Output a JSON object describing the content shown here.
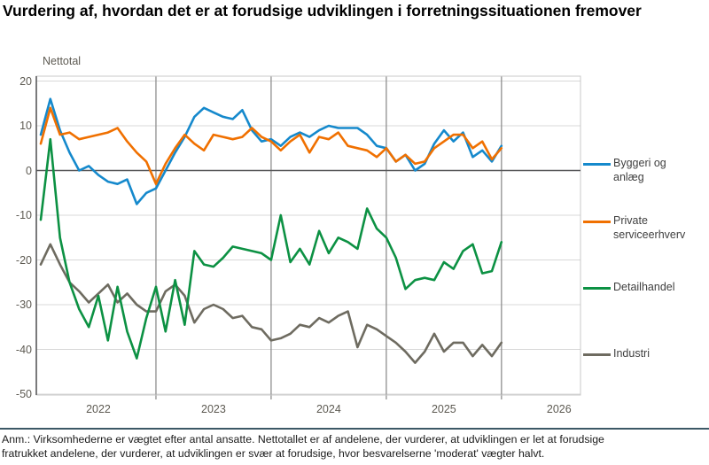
{
  "title": "Vurdering af, hvordan det er at forudsige udviklingen i forretningssituationen fremover",
  "y_axis_title": "Nettotal",
  "footnote_line1": "Anm.: Virksomhederne er vægtet efter antal ansatte. Nettotallet er af andelene, der vurderer, at udviklingen er let at forudsige",
  "footnote_line2": "fratrukket andelene, der vurderer, at udviklingen er svær at forudsige, hvor besvarelserne 'moderat' vægter halvt.",
  "chart_data": {
    "type": "line",
    "title": "Vurdering af, hvordan det er at forudsige udviklingen i forretningssituationen fremover",
    "ylabel": "Nettotal",
    "ylim": [
      -50,
      20
    ],
    "y_ticks": [
      20,
      10,
      0,
      -10,
      -20,
      -30,
      -40,
      -50
    ],
    "x_year_labels": [
      "2022",
      "2023",
      "2024",
      "2025",
      "2026"
    ],
    "grid": true,
    "legend_position": "right",
    "x": [
      "2021-07",
      "2021-08",
      "2021-09",
      "2021-10",
      "2021-11",
      "2021-12",
      "2022-01",
      "2022-02",
      "2022-03",
      "2022-04",
      "2022-05",
      "2022-06",
      "2022-07",
      "2022-08",
      "2022-09",
      "2022-10",
      "2022-11",
      "2022-12",
      "2023-01",
      "2023-02",
      "2023-03",
      "2023-04",
      "2023-05",
      "2023-06",
      "2023-07",
      "2023-08",
      "2023-09",
      "2023-10",
      "2023-11",
      "2023-12",
      "2024-01",
      "2024-02",
      "2024-03",
      "2024-04",
      "2024-05",
      "2024-06",
      "2024-07",
      "2024-08",
      "2024-09",
      "2024-10",
      "2024-11",
      "2024-12",
      "2025-01",
      "2025-02",
      "2025-03",
      "2025-04",
      "2025-05",
      "2025-06",
      "2025-07"
    ],
    "series": [
      {
        "name": "Byggeri og anlæg",
        "color": "#1589cc",
        "values": [
          8,
          16,
          9,
          4,
          0,
          1,
          -1,
          -2.5,
          -3,
          -2,
          -7.5,
          -5,
          -4,
          0,
          4,
          7.5,
          12,
          14,
          13,
          12,
          11.5,
          13.5,
          9,
          6.5,
          7,
          5.5,
          7.5,
          8.5,
          7.5,
          9,
          10,
          9.5,
          9.5,
          9.5,
          8,
          5.5,
          5,
          2,
          3.5,
          0,
          1.5,
          6,
          9,
          6.5,
          8.5,
          3,
          4.5,
          2,
          5.5
        ]
      },
      {
        "name": "Private serviceerhverv",
        "color": "#f07000",
        "values": [
          6,
          14,
          8,
          8.5,
          7,
          7.5,
          8,
          8.5,
          9.5,
          6.5,
          4,
          2,
          -3,
          1.5,
          5,
          8,
          6,
          4.5,
          8,
          7.5,
          7,
          7.5,
          9.5,
          7.5,
          6.5,
          4.5,
          6.5,
          8,
          4,
          7.5,
          7,
          8.5,
          5.5,
          5,
          4.5,
          3,
          5,
          2,
          3.5,
          1.5,
          2,
          5,
          6.5,
          8,
          8,
          5,
          6.5,
          2.5,
          5
        ]
      },
      {
        "name": "Detailhandel",
        "color": "#0c9143",
        "values": [
          -11,
          7,
          -15,
          -25,
          -31,
          -35,
          -28,
          -38,
          -26,
          -36,
          -42,
          -33,
          -26,
          -36,
          -24.5,
          -34.5,
          -18,
          -21,
          -21.5,
          -19.5,
          -17,
          -17.5,
          -18,
          -18.5,
          -20,
          -10,
          -20.5,
          -17.5,
          -21,
          -13.5,
          -18.5,
          -15,
          -16,
          -17.5,
          -8.5,
          -13,
          -15,
          -19.5,
          -26.5,
          -24.5,
          -24,
          -24.5,
          -20.5,
          -22,
          -18,
          -16.5,
          -23,
          -22.5,
          -16
        ]
      },
      {
        "name": "Industri",
        "color": "#6e6b60",
        "values": [
          -21,
          -16.5,
          -21,
          -25,
          -27,
          -29.5,
          -27.5,
          -25.5,
          -29.5,
          -27.5,
          -30,
          -31.5,
          -31.5,
          -27,
          -25.5,
          -28,
          -34,
          -31,
          -30,
          -31,
          -33,
          -32.5,
          -35,
          -35.5,
          -38,
          -37.5,
          -36.5,
          -34.5,
          -35,
          -33,
          -34,
          -32.5,
          -31.5,
          -39.5,
          -34.5,
          -35.5,
          -37,
          -38.5,
          -40.5,
          -43,
          -40.5,
          -36.5,
          -40.5,
          -38.5,
          -38.5,
          -41.5,
          -39,
          -41.5,
          -38.5
        ]
      }
    ]
  }
}
